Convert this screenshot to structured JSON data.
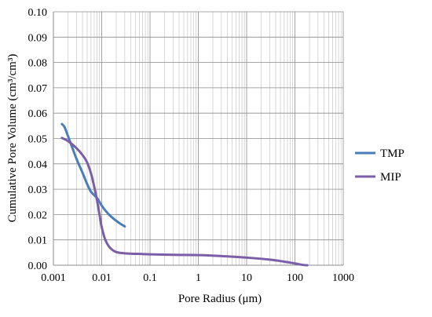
{
  "chart_data": {
    "type": "line",
    "xlabel": "Pore Radius (μm)",
    "ylabel": "Cumulative Pore Volume (cm³/cm³)",
    "xscale": "log",
    "xlim": [
      0.001,
      1000
    ],
    "ylim": [
      0,
      0.1
    ],
    "x_ticks": [
      0.001,
      0.01,
      0.1,
      1,
      10,
      100,
      1000
    ],
    "x_tick_labels": [
      "0.001",
      "0.01",
      "0.1",
      "1",
      "10",
      "100",
      "1000"
    ],
    "y_ticks": [
      0,
      0.01,
      0.02,
      0.03,
      0.04,
      0.05,
      0.06,
      0.07,
      0.08,
      0.09,
      0.1
    ],
    "y_tick_labels": [
      "0.00",
      "0.01",
      "0.02",
      "0.03",
      "0.04",
      "0.05",
      "0.06",
      "0.07",
      "0.08",
      "0.09",
      "0.10"
    ],
    "grid": true,
    "legend_position": "right",
    "series": [
      {
        "name": "TMP",
        "color": "#4a7ebb",
        "points": [
          [
            0.0015,
            0.0557
          ],
          [
            0.0017,
            0.0545
          ],
          [
            0.002,
            0.051
          ],
          [
            0.0025,
            0.046
          ],
          [
            0.003,
            0.042
          ],
          [
            0.004,
            0.0365
          ],
          [
            0.005,
            0.032
          ],
          [
            0.006,
            0.029
          ],
          [
            0.008,
            0.0265
          ],
          [
            0.01,
            0.0235
          ],
          [
            0.012,
            0.0215
          ],
          [
            0.015,
            0.0195
          ],
          [
            0.02,
            0.0175
          ],
          [
            0.025,
            0.0162
          ],
          [
            0.03,
            0.0153
          ]
        ]
      },
      {
        "name": "MIP",
        "color": "#7b5ea7",
        "points": [
          [
            0.0015,
            0.0502
          ],
          [
            0.002,
            0.049
          ],
          [
            0.003,
            0.0462
          ],
          [
            0.004,
            0.0435
          ],
          [
            0.005,
            0.0405
          ],
          [
            0.006,
            0.0362
          ],
          [
            0.007,
            0.031
          ],
          [
            0.008,
            0.0255
          ],
          [
            0.009,
            0.02
          ],
          [
            0.01,
            0.015
          ],
          [
            0.012,
            0.0098
          ],
          [
            0.015,
            0.0068
          ],
          [
            0.02,
            0.0052
          ],
          [
            0.03,
            0.0047
          ],
          [
            0.05,
            0.0045
          ],
          [
            0.1,
            0.0043
          ],
          [
            0.3,
            0.0041
          ],
          [
            1,
            0.004
          ],
          [
            3,
            0.0036
          ],
          [
            10,
            0.003
          ],
          [
            30,
            0.0022
          ],
          [
            60,
            0.0014
          ],
          [
            100,
            0.0007
          ],
          [
            150,
            0.0001
          ],
          [
            180,
            0.0
          ]
        ]
      }
    ]
  }
}
